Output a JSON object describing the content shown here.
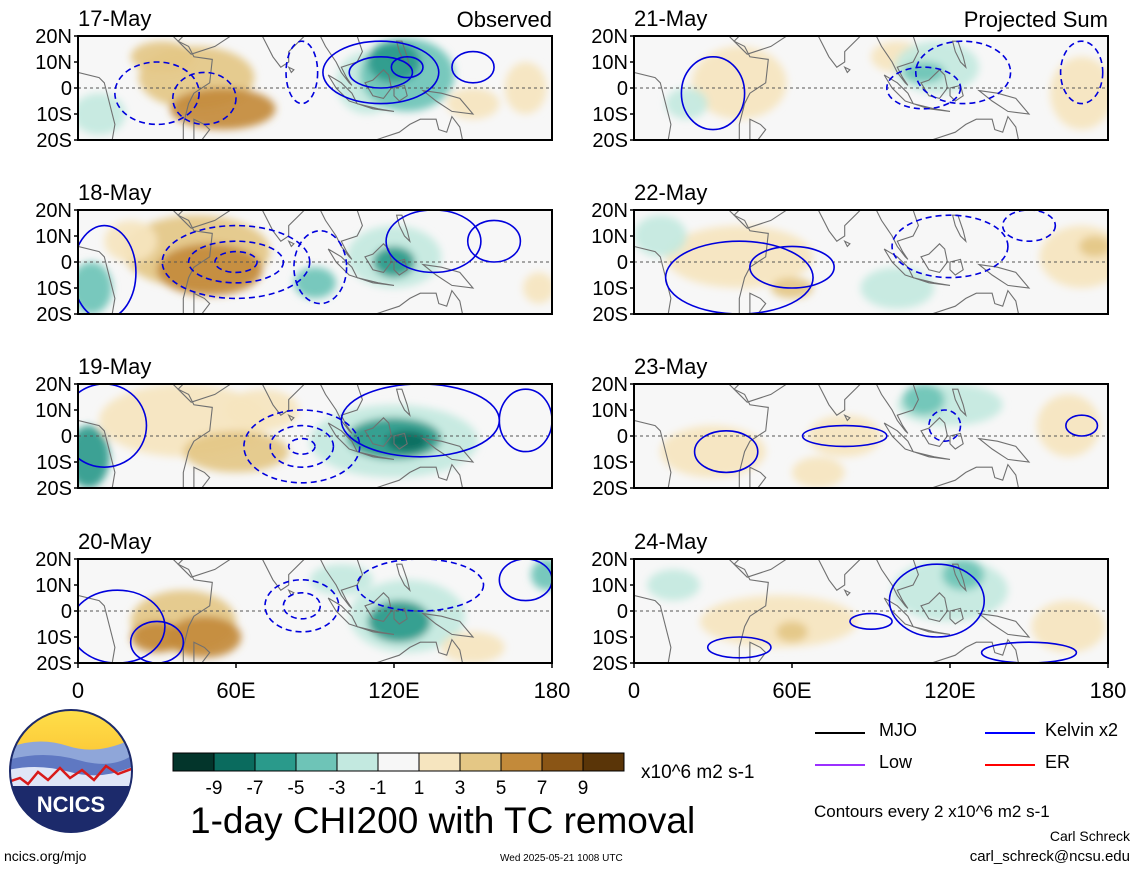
{
  "panels_left": [
    {
      "date": "17-May",
      "tag": "Observed"
    },
    {
      "date": "18-May",
      "tag": ""
    },
    {
      "date": "19-May",
      "tag": ""
    },
    {
      "date": "20-May",
      "tag": ""
    }
  ],
  "panels_right": [
    {
      "date": "21-May",
      "tag": "Projected Sum"
    },
    {
      "date": "22-May",
      "tag": ""
    },
    {
      "date": "23-May",
      "tag": ""
    },
    {
      "date": "24-May",
      "tag": ""
    }
  ],
  "lat_labels": [
    "20N",
    "10N",
    "0",
    "10S",
    "20S"
  ],
  "lon_labels": [
    "0",
    "60E",
    "120E",
    "180"
  ],
  "colorbar": {
    "colors": [
      "#03352b",
      "#0a6b5e",
      "#2a9a8b",
      "#6ec4b7",
      "#c3e9e0",
      "#f7f7f7",
      "#f6e5bf",
      "#e4c785",
      "#c38a3a",
      "#8a5515",
      "#5a3508"
    ],
    "labels": [
      "-9",
      "-7",
      "-5",
      "-3",
      "-1",
      "1",
      "3",
      "5",
      "7",
      "9"
    ],
    "units": "x10^6 m2 s-1"
  },
  "title": "1-day CHI200 with TC removal",
  "legend": [
    {
      "label": "MJO",
      "color": "#000000"
    },
    {
      "label": "Kelvin x2",
      "color": "#0000ff"
    },
    {
      "label": "Low",
      "color": "#9b30ff"
    },
    {
      "label": "ER",
      "color": "#ff0000"
    }
  ],
  "contour_note": "Contours every 2 x10^6 m2 s-1",
  "author": "Carl Schreck",
  "email": "carl_schreck@ncsu.edu",
  "site": "ncics.org/mjo",
  "timestamp": "Wed 2025-05-21 1008 UTC",
  "logo_text": "NCICS"
}
